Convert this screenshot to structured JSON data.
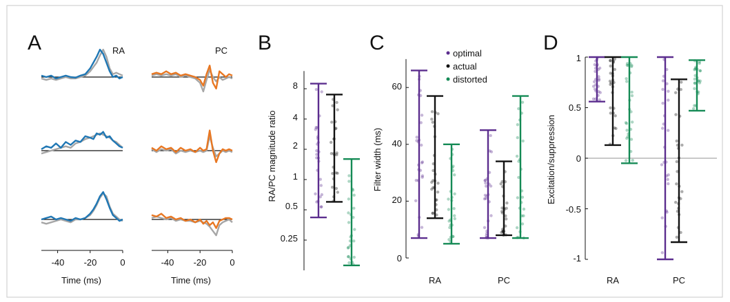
{
  "colors": {
    "optimal": "#5b2d8e",
    "actual": "#111111",
    "distorted": "#148a55",
    "ra": "#1f77b4",
    "pc": "#e87722",
    "gray": "#a6a6a6",
    "frame": "#c8c8c8"
  },
  "panels": {
    "a": {
      "letter": "A",
      "ra_label": "RA",
      "pc_label": "PC",
      "xlabel": "Time (ms)",
      "xticks": [
        "-40",
        "-20",
        "0"
      ]
    },
    "b": {
      "letter": "B",
      "ylabel": "RA/PC magnitude ratio",
      "yticks": [
        "8",
        "4",
        "2",
        "1",
        "0.5",
        "0.25"
      ]
    },
    "c": {
      "letter": "C",
      "ylabel": "Filter width (ms)",
      "yticks": [
        "60",
        "40",
        "20",
        "0"
      ],
      "xticks": [
        "RA",
        "PC"
      ]
    },
    "d": {
      "letter": "D",
      "ylabel": "Excitation/suppression",
      "yticks": [
        "1",
        "0.5",
        "0",
        "-0.5",
        "-1"
      ],
      "xticks": [
        "RA",
        "PC"
      ]
    }
  },
  "legend": [
    "optimal",
    "actual",
    "distorted"
  ],
  "chart_data": [
    {
      "panel": "A",
      "type": "line",
      "xlabel": "Time (ms)",
      "xlim": [
        -50,
        0
      ],
      "xticks": [
        -40,
        -20,
        0
      ],
      "titles": [
        "RA",
        "PC"
      ],
      "ra_traces": [
        {
          "x": [
            -50,
            -47,
            -44,
            -41,
            -38,
            -35,
            -32,
            -29,
            -26,
            -23,
            -20,
            -18,
            -16,
            -14,
            -12,
            -10,
            -8,
            -6,
            -4,
            -2,
            0
          ],
          "model": [
            0.05,
            0.0,
            0.05,
            -0.05,
            0.0,
            0.05,
            0.0,
            -0.02,
            0.05,
            0.1,
            0.3,
            0.5,
            0.7,
            0.95,
            0.8,
            0.5,
            0.2,
            0.0,
            0.05,
            -0.05,
            0.0
          ],
          "data": [
            -0.05,
            -0.1,
            -0.05,
            -0.1,
            -0.05,
            0.0,
            -0.05,
            -0.05,
            0.0,
            0.05,
            0.2,
            0.35,
            0.5,
            0.75,
            0.95,
            0.7,
            0.3,
            0.1,
            0.15,
            0.1,
            0.05
          ]
        },
        {
          "x": [
            -50,
            -47,
            -44,
            -41,
            -38,
            -35,
            -32,
            -29,
            -26,
            -23,
            -20,
            -18,
            -16,
            -14,
            -12,
            -10,
            -8,
            -6,
            -4,
            -2,
            0
          ],
          "model": [
            0.05,
            0.15,
            0.1,
            0.25,
            0.1,
            0.3,
            0.2,
            0.35,
            0.3,
            0.5,
            0.45,
            0.4,
            0.6,
            0.55,
            0.65,
            0.45,
            0.5,
            0.35,
            0.25,
            0.15,
            0.1
          ],
          "data": [
            -0.1,
            -0.05,
            0.0,
            0.05,
            0.1,
            0.15,
            0.1,
            0.25,
            0.3,
            0.4,
            0.45,
            0.5,
            0.55,
            0.6,
            0.55,
            0.5,
            0.45,
            0.35,
            0.3,
            0.2,
            0.1
          ]
        },
        {
          "x": [
            -50,
            -47,
            -44,
            -41,
            -38,
            -35,
            -32,
            -29,
            -26,
            -23,
            -20,
            -18,
            -16,
            -14,
            -12,
            -10,
            -8,
            -6,
            -4,
            -2,
            0
          ],
          "model": [
            0.0,
            0.05,
            0.1,
            0.0,
            0.05,
            0.0,
            -0.05,
            0.05,
            0.0,
            0.05,
            0.2,
            0.35,
            0.55,
            0.8,
            0.95,
            0.7,
            0.4,
            0.15,
            0.05,
            -0.05,
            0.0
          ],
          "data": [
            -0.1,
            -0.15,
            -0.1,
            -0.05,
            0.0,
            -0.05,
            -0.1,
            0.0,
            0.0,
            0.05,
            0.15,
            0.3,
            0.5,
            0.75,
            0.9,
            0.8,
            0.45,
            0.2,
            0.1,
            0.0,
            -0.05
          ]
        }
      ],
      "pc_traces": [
        {
          "x": [
            -50,
            -47,
            -44,
            -41,
            -38,
            -35,
            -32,
            -29,
            -26,
            -23,
            -20,
            -18,
            -16,
            -14,
            -12,
            -10,
            -8,
            -6,
            -4,
            -2,
            0
          ],
          "model": [
            0.1,
            0.15,
            0.1,
            0.2,
            0.1,
            0.15,
            0.05,
            0.1,
            0.05,
            0.0,
            -0.1,
            -0.3,
            0.1,
            0.4,
            -0.2,
            -0.4,
            0.2,
            0.1,
            0.0,
            0.1,
            0.05
          ],
          "data": [
            0.05,
            0.1,
            0.05,
            0.1,
            0.05,
            0.1,
            0.0,
            0.05,
            0.0,
            -0.05,
            -0.2,
            -0.5,
            -0.1,
            0.25,
            0.0,
            -0.15,
            0.0,
            -0.1,
            -0.05,
            0.0,
            -0.05
          ]
        },
        {
          "x": [
            -50,
            -47,
            -44,
            -41,
            -38,
            -35,
            -32,
            -29,
            -26,
            -23,
            -20,
            -18,
            -16,
            -14,
            -12,
            -10,
            -8,
            -6,
            -4,
            -2,
            0
          ],
          "model": [
            0.1,
            0.0,
            0.15,
            0.05,
            0.1,
            -0.05,
            0.1,
            0.0,
            0.05,
            -0.05,
            0.1,
            0.0,
            0.05,
            0.7,
            0.0,
            -0.4,
            -0.1,
            0.05,
            0.0,
            0.05,
            0.0
          ],
          "data": [
            0.05,
            -0.05,
            0.05,
            0.0,
            0.05,
            -0.1,
            0.0,
            -0.05,
            0.0,
            -0.05,
            0.0,
            -0.05,
            0.0,
            0.5,
            0.1,
            -0.2,
            -0.1,
            0.0,
            -0.05,
            0.0,
            -0.05
          ]
        },
        {
          "x": [
            -50,
            -47,
            -44,
            -41,
            -38,
            -35,
            -32,
            -29,
            -26,
            -23,
            -20,
            -18,
            -16,
            -14,
            -12,
            -10,
            -8,
            -6,
            -4,
            -2,
            0
          ],
          "model": [
            0.15,
            0.1,
            0.2,
            0.05,
            0.1,
            0.0,
            0.05,
            -0.05,
            0.0,
            -0.1,
            0.0,
            -0.15,
            -0.05,
            -0.2,
            -0.1,
            -0.3,
            -0.05,
            0.0,
            0.05,
            0.05,
            0.0
          ],
          "data": [
            0.05,
            0.1,
            0.05,
            0.0,
            0.05,
            -0.05,
            0.0,
            -0.05,
            -0.05,
            -0.1,
            -0.05,
            -0.1,
            -0.15,
            -0.25,
            -0.4,
            -0.55,
            -0.2,
            -0.1,
            -0.05,
            0.0,
            -0.1
          ]
        }
      ]
    },
    {
      "panel": "B",
      "type": "scatter",
      "ylabel": "RA/PC magnitude ratio",
      "yscale": "log2",
      "ylim": [
        0.125,
        12
      ],
      "yticks": [
        8,
        4,
        2,
        1,
        0.5,
        0.25
      ],
      "groups": [
        {
          "name": "optimal",
          "low": 0.42,
          "high": 9.0
        },
        {
          "name": "actual",
          "low": 0.6,
          "high": 7.0
        },
        {
          "name": "distorted",
          "low": 0.14,
          "high": 1.6
        }
      ]
    },
    {
      "panel": "C",
      "type": "scatter",
      "ylabel": "Filter width (ms)",
      "ylim": [
        0,
        70
      ],
      "yticks": [
        0,
        20,
        40,
        60
      ],
      "categories": [
        "RA",
        "PC"
      ],
      "groups": [
        {
          "category": "RA",
          "name": "optimal",
          "low": 7,
          "high": 66
        },
        {
          "category": "RA",
          "name": "actual",
          "low": 14,
          "high": 57
        },
        {
          "category": "RA",
          "name": "distorted",
          "low": 5,
          "high": 40
        },
        {
          "category": "PC",
          "name": "optimal",
          "low": 7,
          "high": 45
        },
        {
          "category": "PC",
          "name": "actual",
          "low": 8,
          "high": 34
        },
        {
          "category": "PC",
          "name": "distorted",
          "low": 7,
          "high": 57
        }
      ]
    },
    {
      "panel": "D",
      "type": "scatter",
      "ylabel": "Excitation/suppression",
      "ylim": [
        -1,
        1
      ],
      "yticks": [
        1,
        0.5,
        0,
        -0.5,
        -1
      ],
      "categories": [
        "RA",
        "PC"
      ],
      "groups": [
        {
          "category": "RA",
          "name": "optimal",
          "low": 0.56,
          "high": 1.0
        },
        {
          "category": "RA",
          "name": "actual",
          "low": 0.13,
          "high": 1.0
        },
        {
          "category": "RA",
          "name": "distorted",
          "low": -0.05,
          "high": 1.0
        },
        {
          "category": "PC",
          "name": "optimal",
          "low": -1.0,
          "high": 1.0
        },
        {
          "category": "PC",
          "name": "actual",
          "low": -0.83,
          "high": 0.78
        },
        {
          "category": "PC",
          "name": "distorted",
          "low": 0.47,
          "high": 0.97
        }
      ]
    }
  ]
}
